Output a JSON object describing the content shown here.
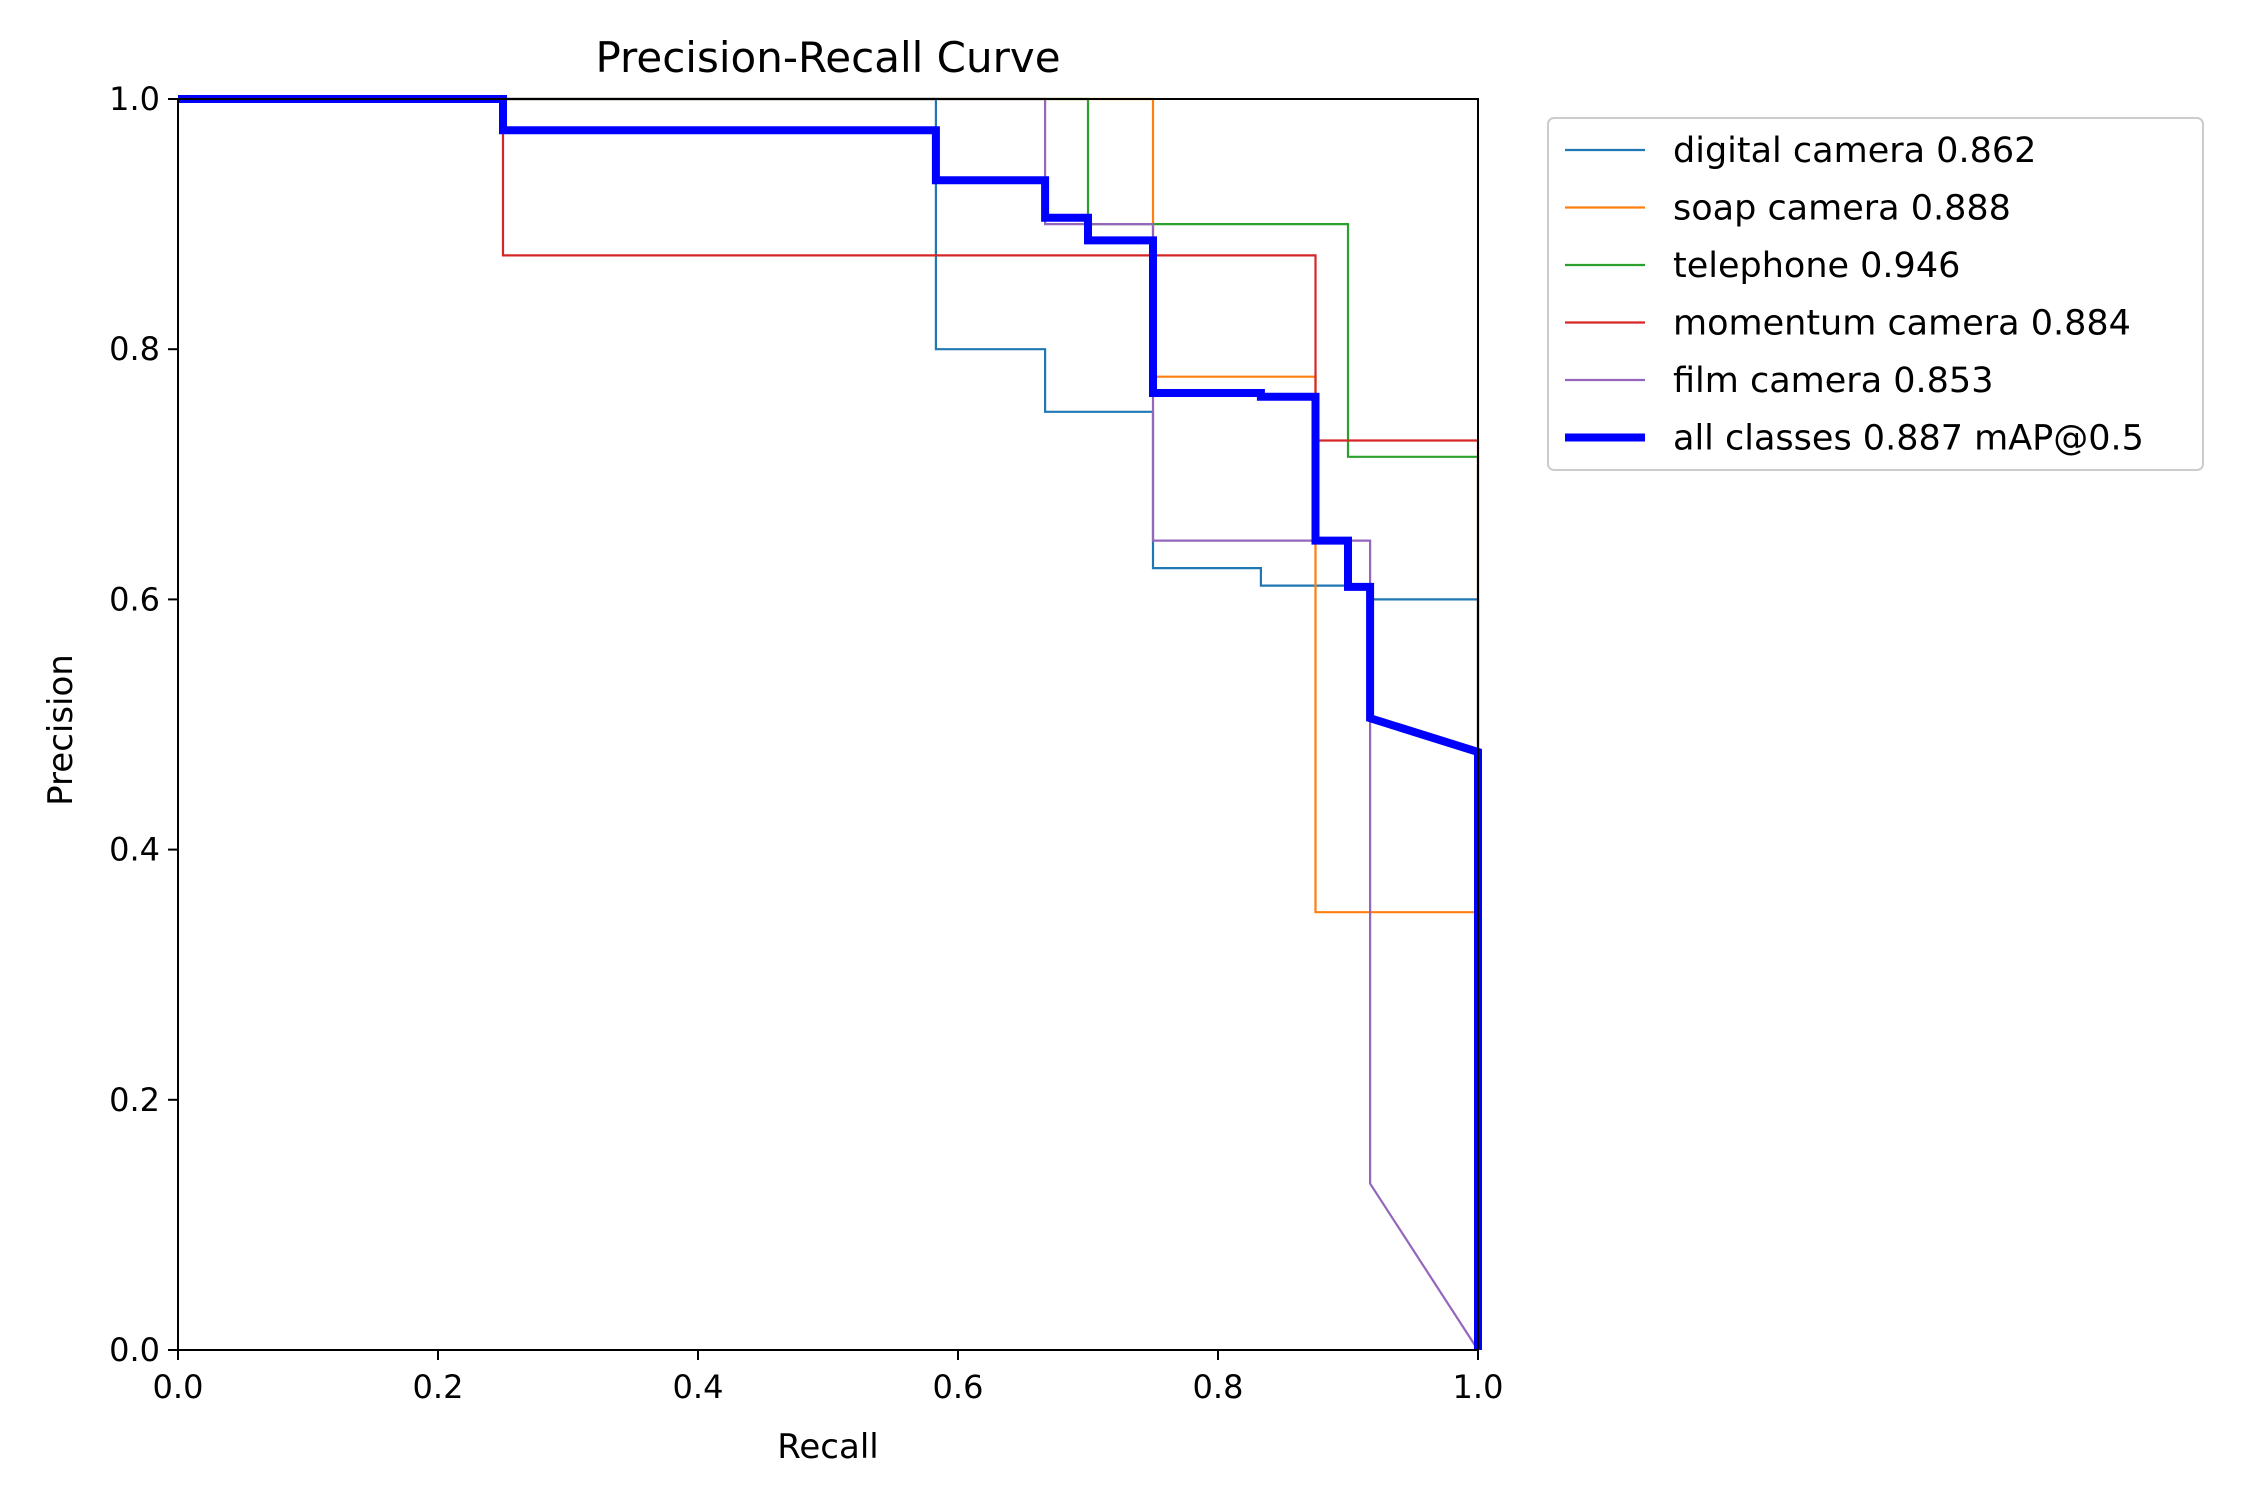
{
  "chart_data": {
    "type": "line",
    "title": "Precision-Recall Curve",
    "xlabel": "Recall",
    "ylabel": "Precision",
    "xlim": [
      0,
      1
    ],
    "ylim": [
      0,
      1
    ],
    "xticks": [
      "0.0",
      "0.2",
      "0.4",
      "0.6",
      "0.8",
      "1.0"
    ],
    "yticks": [
      "0.0",
      "0.2",
      "0.4",
      "0.6",
      "0.8",
      "1.0"
    ],
    "grid": false,
    "legend_position": "outside upper right",
    "series": [
      {
        "name": "digital camera 0.862",
        "color": "#1f77b4",
        "width": "thin",
        "points": [
          [
            0,
            1
          ],
          [
            0.583,
            1
          ],
          [
            0.583,
            0.8
          ],
          [
            0.667,
            0.8
          ],
          [
            0.667,
            0.75
          ],
          [
            0.75,
            0.75
          ],
          [
            0.75,
            0.625
          ],
          [
            0.833,
            0.625
          ],
          [
            0.833,
            0.611
          ],
          [
            0.917,
            0.611
          ],
          [
            0.917,
            0.6
          ],
          [
            1.0,
            0.6
          ],
          [
            1.0,
            0
          ]
        ]
      },
      {
        "name": "soap camera 0.888",
        "color": "#ff7f0e",
        "width": "thin",
        "points": [
          [
            0,
            1
          ],
          [
            0.75,
            1
          ],
          [
            0.75,
            0.778
          ],
          [
            0.875,
            0.778
          ],
          [
            0.875,
            0.35
          ],
          [
            1.0,
            0.35
          ],
          [
            1.0,
            0
          ]
        ]
      },
      {
        "name": "telephone 0.946",
        "color": "#2ca02c",
        "width": "thin",
        "points": [
          [
            0,
            1
          ],
          [
            0.7,
            1
          ],
          [
            0.7,
            0.9
          ],
          [
            0.9,
            0.9
          ],
          [
            0.9,
            0.714
          ],
          [
            1.0,
            0.714
          ],
          [
            1.0,
            0
          ]
        ]
      },
      {
        "name": "momentum camera 0.884",
        "color": "#d62728",
        "width": "thin",
        "points": [
          [
            0,
            1
          ],
          [
            0.25,
            1
          ],
          [
            0.25,
            0.875
          ],
          [
            0.875,
            0.875
          ],
          [
            0.875,
            0.727
          ],
          [
            1.0,
            0.727
          ],
          [
            1.0,
            0
          ]
        ]
      },
      {
        "name": "film camera 0.853",
        "color": "#9467bd",
        "width": "thin",
        "points": [
          [
            0,
            1
          ],
          [
            0.667,
            1
          ],
          [
            0.667,
            0.9
          ],
          [
            0.75,
            0.9
          ],
          [
            0.75,
            0.647
          ],
          [
            0.917,
            0.647
          ],
          [
            0.917,
            0.133
          ],
          [
            1.0,
            0.0
          ]
        ]
      },
      {
        "name": "all classes 0.887 mAP@0.5",
        "color": "#0000ff",
        "width": "thick",
        "points": [
          [
            0,
            1
          ],
          [
            0.25,
            1
          ],
          [
            0.25,
            0.975
          ],
          [
            0.583,
            0.975
          ],
          [
            0.583,
            0.935
          ],
          [
            0.667,
            0.935
          ],
          [
            0.667,
            0.905
          ],
          [
            0.7,
            0.905
          ],
          [
            0.7,
            0.887
          ],
          [
            0.75,
            0.887
          ],
          [
            0.75,
            0.765
          ],
          [
            0.833,
            0.765
          ],
          [
            0.833,
            0.762
          ],
          [
            0.875,
            0.762
          ],
          [
            0.875,
            0.647
          ],
          [
            0.9,
            0.647
          ],
          [
            0.9,
            0.61
          ],
          [
            0.917,
            0.61
          ],
          [
            0.917,
            0.505
          ],
          [
            1.0,
            0.478
          ],
          [
            1.0,
            0
          ]
        ]
      }
    ]
  }
}
